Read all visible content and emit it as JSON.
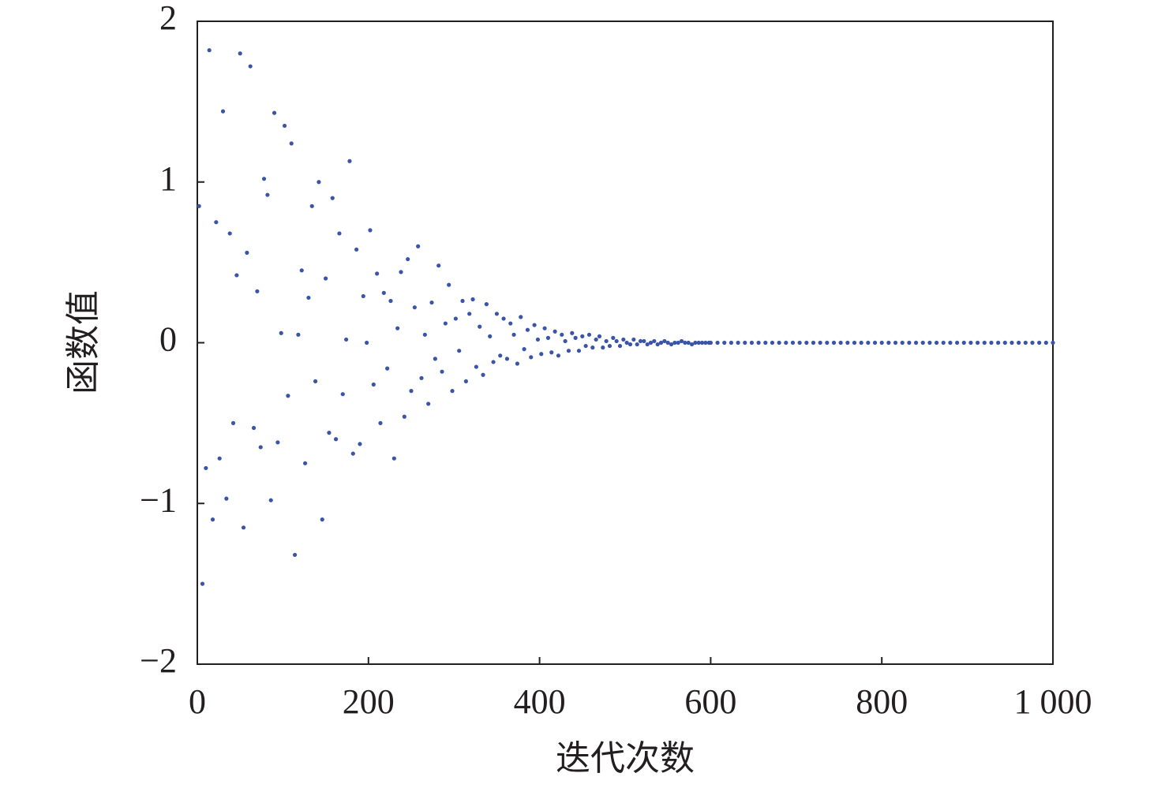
{
  "chart_data": {
    "type": "scatter",
    "xlabel": "迭代次数",
    "ylabel": "函数值",
    "color": "#3a55a8",
    "xlim": [
      0,
      1000
    ],
    "ylim": [
      -2,
      2
    ],
    "xticks": [
      0,
      200,
      400,
      600,
      800,
      {
        "value": 1000,
        "label": "1 000"
      }
    ],
    "yticks": [
      {
        "value": -2,
        "label": "−2"
      },
      {
        "value": -1,
        "label": "−1"
      },
      0,
      1,
      2
    ],
    "x": [
      2,
      6,
      10,
      14,
      18,
      22,
      26,
      30,
      34,
      38,
      42,
      46,
      50,
      54,
      58,
      62,
      66,
      70,
      74,
      78,
      82,
      86,
      90,
      94,
      98,
      102,
      106,
      110,
      114,
      118,
      122,
      126,
      130,
      134,
      138,
      142,
      146,
      150,
      154,
      158,
      162,
      166,
      170,
      174,
      178,
      182,
      186,
      190,
      194,
      198,
      202,
      206,
      210,
      214,
      218,
      222,
      226,
      230,
      234,
      238,
      242,
      246,
      250,
      254,
      258,
      262,
      266,
      270,
      274,
      278,
      282,
      286,
      290,
      294,
      298,
      302,
      306,
      310,
      314,
      318,
      322,
      326,
      330,
      334,
      338,
      342,
      346,
      350,
      354,
      358,
      362,
      366,
      370,
      374,
      378,
      382,
      386,
      390,
      394,
      398,
      402,
      406,
      410,
      414,
      418,
      422,
      426,
      430,
      434,
      438,
      442,
      446,
      450,
      454,
      458,
      462,
      466,
      470,
      474,
      478,
      482,
      486,
      490,
      494,
      498,
      502,
      506,
      510,
      514,
      518,
      522,
      526,
      530,
      534,
      538,
      542,
      546,
      550,
      554,
      558,
      562,
      566,
      570,
      574,
      578,
      582,
      586,
      590,
      594,
      598,
      600,
      608,
      616,
      624,
      632,
      640,
      648,
      656,
      664,
      672,
      680,
      688,
      696,
      704,
      712,
      720,
      728,
      736,
      744,
      752,
      760,
      768,
      776,
      784,
      792,
      800,
      808,
      816,
      824,
      832,
      840,
      848,
      856,
      864,
      872,
      880,
      888,
      896,
      904,
      912,
      920,
      928,
      936,
      944,
      952,
      960,
      968,
      976,
      984,
      992,
      1000
    ],
    "values": [
      0.85,
      -1.5,
      -0.78,
      1.82,
      -1.1,
      0.75,
      -0.72,
      1.44,
      -0.97,
      0.68,
      -0.5,
      0.42,
      1.8,
      -1.15,
      0.56,
      1.72,
      -0.53,
      0.32,
      -0.65,
      1.02,
      0.92,
      -0.98,
      1.43,
      -0.62,
      0.06,
      1.35,
      -0.33,
      1.24,
      -1.32,
      0.05,
      0.45,
      -0.75,
      0.28,
      0.85,
      -0.24,
      1.0,
      -1.1,
      0.4,
      -0.56,
      0.9,
      -0.6,
      0.68,
      -0.32,
      0.02,
      1.13,
      -0.69,
      0.58,
      -0.63,
      0.29,
      0.0,
      0.7,
      -0.26,
      0.43,
      -0.5,
      0.31,
      -0.16,
      0.26,
      -0.72,
      0.09,
      0.44,
      -0.46,
      0.52,
      -0.3,
      0.22,
      0.6,
      -0.22,
      0.05,
      -0.38,
      0.25,
      -0.1,
      0.48,
      -0.18,
      0.12,
      0.36,
      -0.3,
      0.15,
      -0.05,
      0.26,
      -0.24,
      0.18,
      0.27,
      -0.15,
      0.1,
      -0.2,
      0.24,
      0.04,
      -0.12,
      0.18,
      -0.08,
      0.15,
      -0.1,
      0.12,
      0.05,
      -0.13,
      0.16,
      -0.04,
      0.08,
      -0.09,
      0.11,
      0.02,
      -0.07,
      0.09,
      0.03,
      -0.06,
      0.07,
      -0.08,
      0.05,
      0.01,
      -0.05,
      0.06,
      0.03,
      -0.05,
      0.04,
      -0.02,
      0.05,
      -0.03,
      0.02,
      0.04,
      -0.03,
      0.01,
      -0.02,
      0.03,
      0.01,
      -0.02,
      0.02,
      0.0,
      -0.01,
      0.02,
      -0.01,
      0.01,
      0.01,
      -0.01,
      0.0,
      0.01,
      -0.01,
      0.0,
      0.01,
      0.0,
      -0.01,
      0.0,
      0.0,
      0.01,
      0.0,
      0.0,
      -0.01,
      0.0,
      0.0,
      0.0,
      0.0,
      0.0,
      0,
      0,
      0,
      0,
      0,
      0,
      0,
      0,
      0,
      0,
      0,
      0,
      0,
      0,
      0,
      0,
      0,
      0,
      0,
      0,
      0,
      0,
      0,
      0,
      0,
      0,
      0,
      0,
      0,
      0,
      0,
      0,
      0,
      0,
      0,
      0,
      0,
      0,
      0,
      0,
      0,
      0,
      0,
      0,
      0,
      0,
      0,
      0,
      0,
      0,
      0
    ]
  }
}
